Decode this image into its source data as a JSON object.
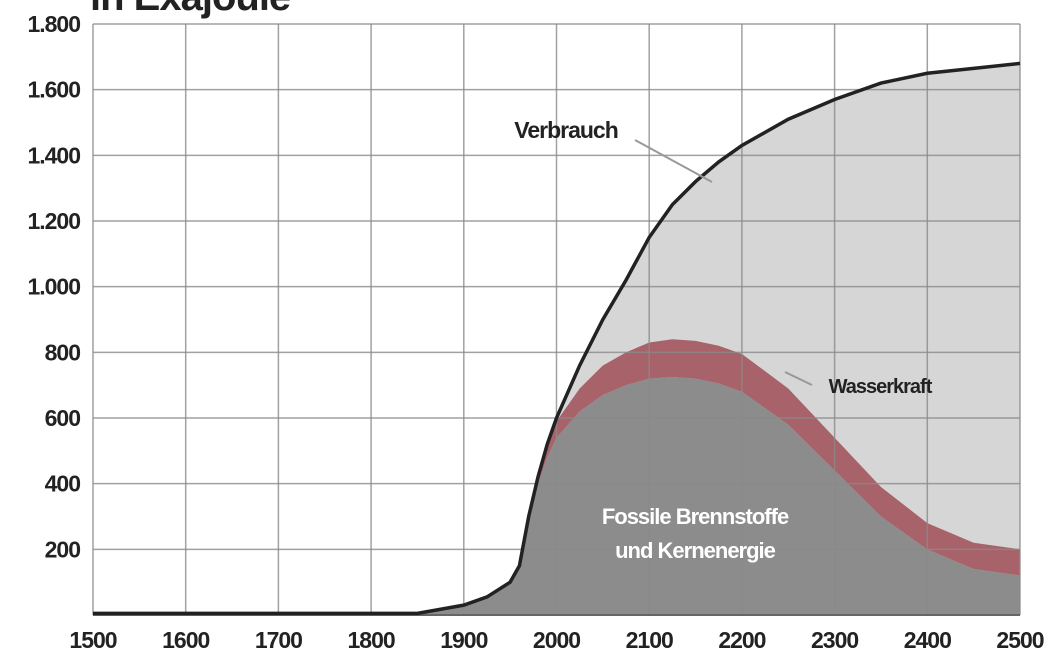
{
  "chart_data": {
    "type": "area",
    "title": "in Exajoule",
    "x": [
      1500,
      1600,
      1700,
      1800,
      1850,
      1900,
      1925,
      1950,
      1960,
      1970,
      1980,
      1990,
      2000,
      2025,
      2050,
      2075,
      2100,
      2125,
      2150,
      2175,
      2200,
      2250,
      2300,
      2350,
      2400,
      2450,
      2500
    ],
    "series": [
      {
        "name": "Verbrauch",
        "color": "#222222",
        "fill": "#d6d6d6",
        "values": [
          5,
          5,
          5,
          5,
          5,
          30,
          55,
          100,
          150,
          300,
          420,
          520,
          600,
          760,
          900,
          1020,
          1150,
          1250,
          1320,
          1380,
          1430,
          1510,
          1570,
          1620,
          1650,
          1665,
          1680
        ]
      },
      {
        "name": "Fossile Brennstoffe und Kernenergie",
        "color": "#8c8c8c",
        "values": [
          5,
          5,
          5,
          5,
          5,
          30,
          55,
          100,
          150,
          290,
          400,
          480,
          540,
          620,
          670,
          700,
          720,
          725,
          720,
          705,
          680,
          580,
          440,
          300,
          200,
          140,
          120
        ]
      },
      {
        "name": "Wasserkraft",
        "color": "#a8626a",
        "values": [
          0,
          0,
          0,
          0,
          0,
          0,
          0,
          0,
          0,
          10,
          20,
          30,
          50,
          70,
          90,
          100,
          110,
          115,
          115,
          115,
          115,
          110,
          100,
          90,
          80,
          80,
          80
        ]
      }
    ],
    "xlim": [
      1500,
      2500
    ],
    "xticks": [
      1500,
      1600,
      1700,
      1800,
      1900,
      2000,
      2100,
      2200,
      2300,
      2400,
      2500
    ],
    "ylim": [
      0,
      1800
    ],
    "yticks": [
      200,
      400,
      600,
      800,
      {
        "value": 1000,
        "label": "1.000"
      },
      {
        "value": 1200,
        "label": "1.200"
      },
      {
        "value": 1400,
        "label": "1.400"
      },
      {
        "value": 1600,
        "label": "1.600"
      },
      {
        "value": 1800,
        "label": "1.800"
      }
    ],
    "grid": true
  }
}
